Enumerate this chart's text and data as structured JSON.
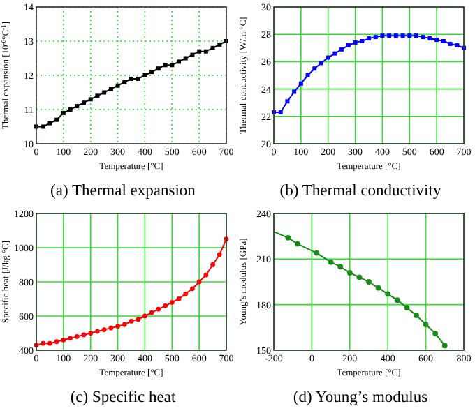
{
  "chart_data": [
    {
      "type": "line",
      "title": "(a) Thermal expansion",
      "xlabel": "Temperature [°C]",
      "ylabel": "Thermal expansion [10$^{-6}$°C$^{-1}$]",
      "x": [
        0,
        25,
        50,
        75,
        100,
        125,
        150,
        175,
        200,
        225,
        250,
        275,
        300,
        325,
        350,
        375,
        400,
        425,
        450,
        475,
        500,
        525,
        550,
        575,
        600,
        625,
        650,
        675,
        700
      ],
      "series": [
        {
          "color": "#000000",
          "values": [
            10.5,
            10.5,
            10.6,
            10.7,
            10.9,
            11.0,
            11.1,
            11.2,
            11.3,
            11.4,
            11.5,
            11.6,
            11.7,
            11.8,
            11.9,
            11.9,
            12.0,
            12.1,
            12.2,
            12.3,
            12.3,
            12.4,
            12.5,
            12.6,
            12.7,
            12.7,
            12.8,
            12.9,
            13.0
          ]
        }
      ],
      "xlim": [
        0,
        700
      ],
      "xticks": [
        0,
        100,
        200,
        300,
        400,
        500,
        600,
        700
      ],
      "ylim": [
        10,
        14
      ],
      "yticks": [
        10,
        11,
        12,
        13,
        14
      ],
      "grid": true,
      "marker": "square",
      "line_style": "solid"
    },
    {
      "type": "line",
      "title": "(b) Thermal conductivity",
      "xlabel": "Temperature [°C]",
      "ylabel": "Thermal conductivity [W/m °C]",
      "x": [
        0,
        25,
        50,
        75,
        100,
        125,
        150,
        175,
        200,
        225,
        250,
        275,
        300,
        325,
        350,
        375,
        400,
        425,
        450,
        475,
        500,
        525,
        550,
        575,
        600,
        625,
        650,
        675,
        700
      ],
      "series": [
        {
          "color": "#0000ff",
          "values": [
            22.3,
            22.3,
            23.1,
            23.8,
            24.4,
            25.0,
            25.5,
            25.9,
            26.3,
            26.6,
            26.9,
            27.2,
            27.4,
            27.5,
            27.7,
            27.8,
            27.9,
            27.9,
            27.9,
            27.9,
            27.9,
            27.9,
            27.8,
            27.7,
            27.6,
            27.5,
            27.3,
            27.2,
            27.0
          ]
        }
      ],
      "xlim": [
        0,
        700
      ],
      "xticks": [
        0,
        100,
        200,
        300,
        400,
        500,
        600,
        700
      ],
      "ylim": [
        20,
        30
      ],
      "yticks": [
        20,
        22,
        24,
        26,
        28,
        30
      ],
      "grid": true,
      "marker": "square",
      "line_style": "solid"
    },
    {
      "type": "line",
      "title": "(c) Specific heat",
      "xlabel": "Temperature [°C]",
      "ylabel": "Specific heat [J/kg °C]",
      "x": [
        0,
        25,
        50,
        75,
        100,
        125,
        150,
        175,
        200,
        225,
        250,
        275,
        300,
        325,
        350,
        375,
        400,
        425,
        450,
        475,
        500,
        525,
        550,
        575,
        600,
        625,
        650,
        675,
        700
      ],
      "series": [
        {
          "color": "#ff0000",
          "values": [
            430,
            440,
            440,
            450,
            460,
            470,
            480,
            490,
            500,
            510,
            520,
            530,
            540,
            550,
            570,
            580,
            600,
            620,
            640,
            660,
            680,
            700,
            730,
            760,
            800,
            840,
            900,
            960,
            1050
          ]
        }
      ],
      "xlim": [
        0,
        700
      ],
      "xticks": [
        0,
        100,
        200,
        300,
        400,
        500,
        600,
        700
      ],
      "ylim": [
        400,
        1200
      ],
      "yticks": [
        400,
        600,
        800,
        1000,
        1200
      ],
      "grid": true,
      "marker": "circle",
      "line_style": "solid"
    },
    {
      "type": "line",
      "title": "(d) Young’s modulus",
      "xlabel": "Temperature [°C]",
      "ylabel": "Young’s modulus [GPa]",
      "series": [
        {
          "color": "#1a8a1a",
          "marker": "none",
          "x": [
            -200,
            -125,
            -75,
            25,
            100,
            150,
            200,
            250,
            300,
            350,
            400,
            450,
            500,
            550,
            600,
            650,
            700
          ],
          "values": [
            228,
            224,
            220,
            214,
            208,
            205,
            201,
            198,
            195,
            191,
            187,
            183,
            178,
            173,
            167,
            161,
            153
          ]
        },
        {
          "type": "scatter",
          "color": "#1a8a1a",
          "marker": "circle",
          "x": [
            -125,
            -75,
            25,
            100,
            150,
            200,
            250,
            300,
            350,
            400,
            450,
            500,
            550,
            600,
            650,
            700
          ],
          "values": [
            224,
            220,
            214,
            208,
            205,
            201,
            198,
            195,
            191,
            187,
            183,
            178,
            173,
            167,
            161,
            153
          ]
        }
      ],
      "xlim": [
        -200,
        800
      ],
      "xticks": [
        -200,
        0,
        200,
        400,
        600,
        800
      ],
      "ylim": [
        150,
        240
      ],
      "yticks": [
        150,
        180,
        210,
        240
      ],
      "grid": true,
      "line_style": "solid"
    }
  ]
}
